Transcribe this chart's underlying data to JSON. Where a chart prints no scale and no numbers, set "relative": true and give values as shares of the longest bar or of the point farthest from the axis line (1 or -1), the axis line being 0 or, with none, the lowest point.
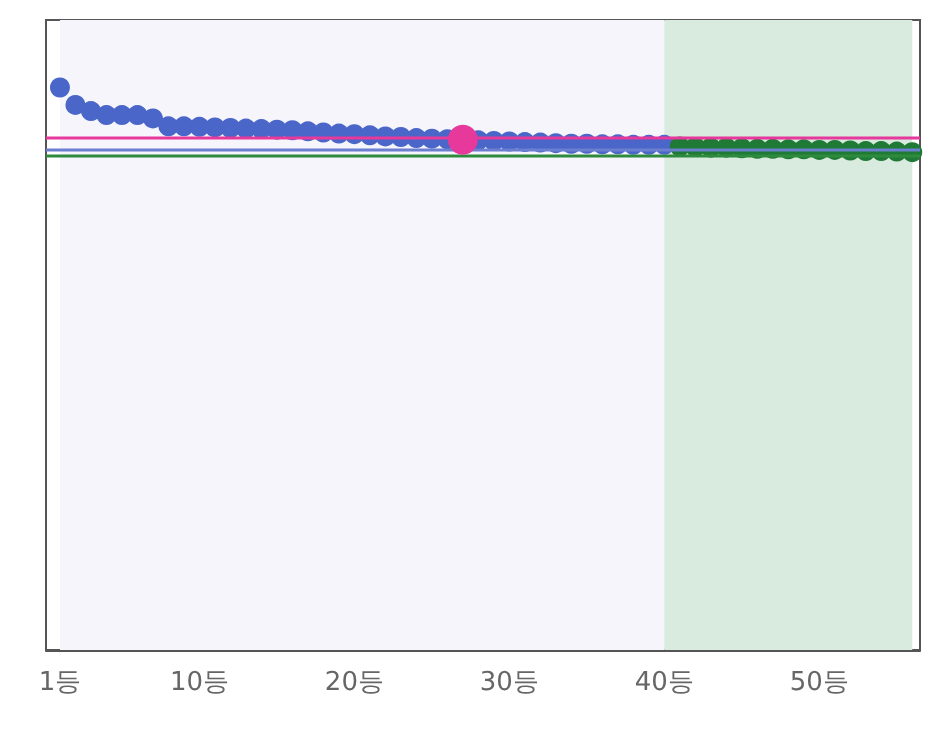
{
  "chart_data": {
    "type": "scatter",
    "relative": true,
    "marker": "circle",
    "xlim": [
      0.1,
      56.5
    ],
    "xticks": [
      {
        "value": 1,
        "label": "1등"
      },
      {
        "value": 10,
        "label": "10등"
      },
      {
        "value": 20,
        "label": "20등"
      },
      {
        "value": 30,
        "label": "30등"
      },
      {
        "value": 40,
        "label": "40등"
      },
      {
        "value": 50,
        "label": "50등"
      }
    ],
    "series": [
      {
        "color": "#4a66c8",
        "x": [
          1,
          2,
          3,
          4,
          5,
          6,
          7,
          8,
          9,
          10,
          11,
          12,
          13,
          14,
          15,
          16,
          17,
          18,
          19,
          20,
          21,
          22,
          23,
          24,
          25,
          26,
          28,
          29,
          30,
          31,
          32,
          33,
          34,
          35,
          36,
          37,
          38,
          39,
          40
        ],
        "values": [
          1.0,
          0.969,
          0.958,
          0.951,
          0.951,
          0.951,
          0.945,
          0.931,
          0.931,
          0.93,
          0.929,
          0.928,
          0.927,
          0.926,
          0.925,
          0.924,
          0.922,
          0.92,
          0.918,
          0.917,
          0.915,
          0.913,
          0.912,
          0.91,
          0.909,
          0.908,
          0.906,
          0.905,
          0.904,
          0.903,
          0.902,
          0.901,
          0.9,
          0.9,
          0.899,
          0.899,
          0.898,
          0.898,
          0.898
        ]
      },
      {
        "color": "#1e7a34",
        "x": [
          41,
          42,
          43,
          44,
          45,
          46,
          47,
          48,
          49,
          50,
          51,
          52,
          53,
          54,
          55,
          56
        ],
        "values": [
          0.895,
          0.894,
          0.893,
          0.893,
          0.892,
          0.891,
          0.891,
          0.89,
          0.89,
          0.889,
          0.889,
          0.888,
          0.887,
          0.887,
          0.886,
          0.885
        ]
      },
      {
        "color": "#e6399b",
        "x": [
          27
        ],
        "values": [
          0.907
        ]
      }
    ],
    "ref_lines": [
      {
        "axis": "y",
        "value": 0.905,
        "color": "#e6399b"
      },
      {
        "axis": "y",
        "value": 0.894,
        "color": "#6a7fd0"
      },
      {
        "axis": "y",
        "value": 0.879,
        "color": "#2e8b3e"
      }
    ],
    "bands": [
      {
        "axis": "x",
        "from": 1,
        "to": 40,
        "color": "#f6f5fc"
      },
      {
        "axis": "x",
        "from": 40,
        "to": 56,
        "color": "#d9eadf"
      }
    ]
  }
}
